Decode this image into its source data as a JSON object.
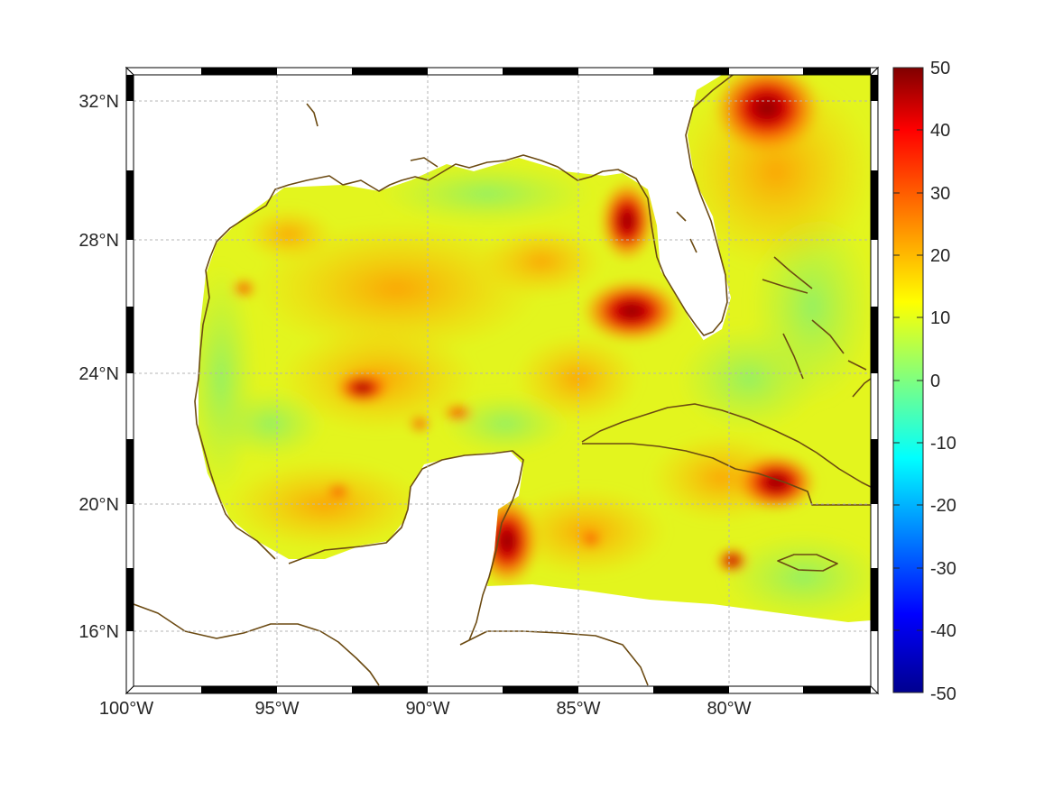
{
  "map": {
    "x_ticks": [
      {
        "lon": -100,
        "label": "100°W"
      },
      {
        "lon": -95,
        "label": "95°W"
      },
      {
        "lon": -90,
        "label": "90°W"
      },
      {
        "lon": -85,
        "label": "85°W"
      },
      {
        "lon": -80,
        "label": "80°W"
      }
    ],
    "y_ticks": [
      {
        "lat": 32,
        "label": "32°N"
      },
      {
        "lat": 28,
        "label": "28°N"
      },
      {
        "lat": 24,
        "label": "24°N"
      },
      {
        "lat": 20,
        "label": "20°N"
      },
      {
        "lat": 16,
        "label": "16°N"
      }
    ],
    "grid": true,
    "coastline_color": "#6b4a12",
    "land_color": "#ffffff"
  },
  "colorbar": {
    "min": -50,
    "max": 50,
    "tick_labels": [
      "50",
      "40",
      "30",
      "20",
      "10",
      "0",
      "-10",
      "-20",
      "-30",
      "-40",
      "-50"
    ],
    "colormap": "jet",
    "stops": [
      "#00008f",
      "#0000ff",
      "#00ffff",
      "#ffff00",
      "#ff0000",
      "#800000"
    ]
  },
  "field": {
    "dominant_range": [
      0,
      25
    ],
    "hotspots": [
      {
        "area": "off South Carolina",
        "value": 50
      },
      {
        "area": "west Florida shelf",
        "value": 45
      },
      {
        "area": "southwest Florida",
        "value": 40
      },
      {
        "area": "central Gulf",
        "value": 50
      },
      {
        "area": "Yucatan Channel",
        "value": 45
      },
      {
        "area": "eastern Cuba",
        "value": 45
      },
      {
        "area": "south of Cuba",
        "value": 40
      }
    ]
  }
}
